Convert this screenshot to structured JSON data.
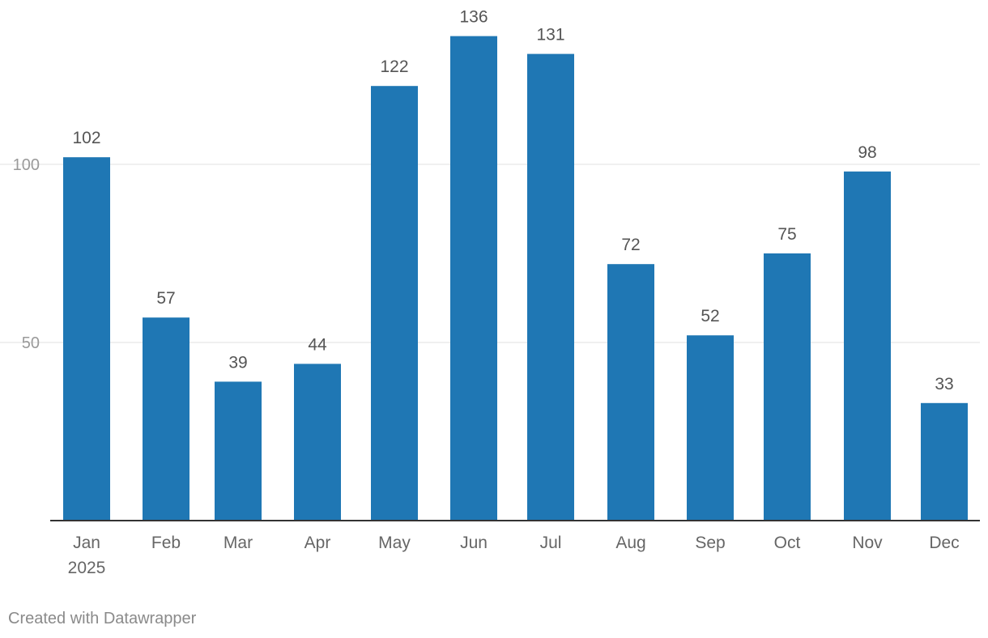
{
  "chart_data": {
    "type": "bar",
    "categories": [
      "Jan",
      "Feb",
      "Mar",
      "Apr",
      "May",
      "Jun",
      "Jul",
      "Aug",
      "Sep",
      "Oct",
      "Nov",
      "Dec"
    ],
    "category_sublabels": [
      "2025",
      "",
      "",
      "",
      "",
      "",
      "",
      "",
      "",
      "",
      "",
      ""
    ],
    "values": [
      102,
      57,
      39,
      44,
      122,
      136,
      131,
      72,
      52,
      75,
      98,
      33
    ],
    "ylim": [
      0,
      140
    ],
    "yticks": [
      50,
      100
    ],
    "grid": true,
    "color": "#1f77b4",
    "title": "",
    "xlabel": "",
    "ylabel": ""
  },
  "footer": {
    "credit": "Created with Datawrapper"
  }
}
